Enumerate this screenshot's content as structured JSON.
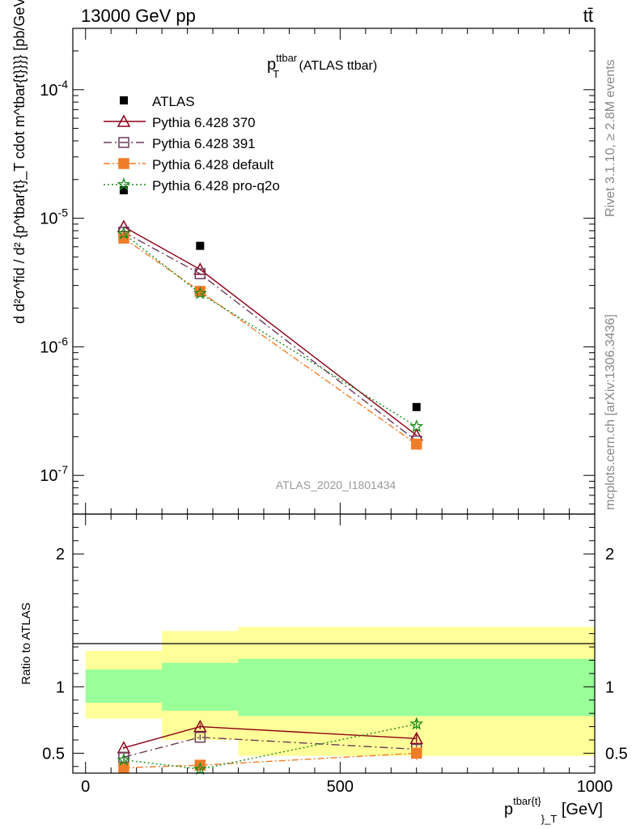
{
  "header": {
    "left": "13000 GeV pp",
    "right": "tt̄"
  },
  "side": {
    "rivet": "Rivet 3.1.10, ≥ 2.8M events",
    "mcplots": "mcplots.cern.ch [arXiv:1306.3436]"
  },
  "chart_data": {
    "type": "scatter",
    "title": {
      "base": "p",
      "sup": "ttbar",
      "sub": "T",
      "rest": " (ATLAS ttbar)"
    },
    "analysis_label": "ATLAS_2020_I1801434",
    "xlabel": {
      "base": "p",
      "sup": "tbar{t}",
      "sub": "}_T",
      "rest": " [GeV]"
    },
    "ylabel": "d d²σ^fid / d² {p^tbar{t}_T cdot m^tbar{t}}}} [pb/GeV²]",
    "ratio_ylabel": "Ratio to ATLAS",
    "xlim": [
      -25,
      1000
    ],
    "ylim_log": [
      5e-08,
      0.0003
    ],
    "ratio_ylim": [
      0.35,
      2.3
    ],
    "x_ticks": [
      "0",
      "500",
      "1000"
    ],
    "y_ticks": [
      "10^-7",
      "10^-6",
      "10^-5",
      "10^-4"
    ],
    "ratio_ticks": [
      "0.5",
      "1",
      "2"
    ],
    "x": [
      75,
      225,
      650
    ],
    "x_bins": [
      [
        0,
        150
      ],
      [
        150,
        300
      ],
      [
        300,
        1000
      ]
    ],
    "data": {
      "name": "ATLAS",
      "values": [
        1.65e-05,
        6.1e-06,
        3.4e-07
      ],
      "band_green": [
        [
          0.88,
          1.13
        ],
        [
          0.82,
          1.18
        ],
        [
          0.78,
          1.21
        ]
      ],
      "band_yellow": [
        [
          0.76,
          1.27
        ],
        [
          0.6,
          1.42
        ],
        [
          0.48,
          1.45
        ]
      ]
    },
    "series": [
      {
        "name": "Pythia 6.428 370",
        "color": "#8b0015",
        "marker": "triangle",
        "dash": "",
        "filled": false,
        "values": [
          8.6e-06,
          4e-06,
          2.05e-07
        ],
        "ratio": [
          0.54,
          0.7,
          0.61
        ],
        "ratio_err": [
          0.01,
          0.02,
          0.03
        ]
      },
      {
        "name": "Pythia 6.428 391",
        "color": "#6b3a5a",
        "marker": "square",
        "dash": "10,4,2,4",
        "filled": false,
        "values": [
          7.8e-06,
          3.7e-06,
          1.85e-07
        ],
        "ratio": [
          0.47,
          0.62,
          0.53
        ],
        "ratio_err": [
          0.01,
          0.02,
          0.04
        ]
      },
      {
        "name": "Pythia 6.428 default",
        "color": "#f07c28",
        "marker": "square",
        "dash": "8,3,2,3",
        "filled": true,
        "values": [
          7e-06,
          2.7e-06,
          1.75e-07
        ],
        "ratio": [
          0.39,
          0.41,
          0.5
        ],
        "ratio_err": [
          0.01,
          0.02,
          0.05
        ]
      },
      {
        "name": "Pythia 6.428 pro-q2o",
        "color": "#1a8a1a",
        "marker": "star",
        "dash": "2,3",
        "filled": false,
        "values": [
          7.6e-06,
          2.6e-06,
          2.4e-07
        ],
        "ratio": [
          0.45,
          0.38,
          0.72
        ],
        "ratio_err": [
          0.01,
          0.01,
          0.04
        ]
      }
    ]
  }
}
